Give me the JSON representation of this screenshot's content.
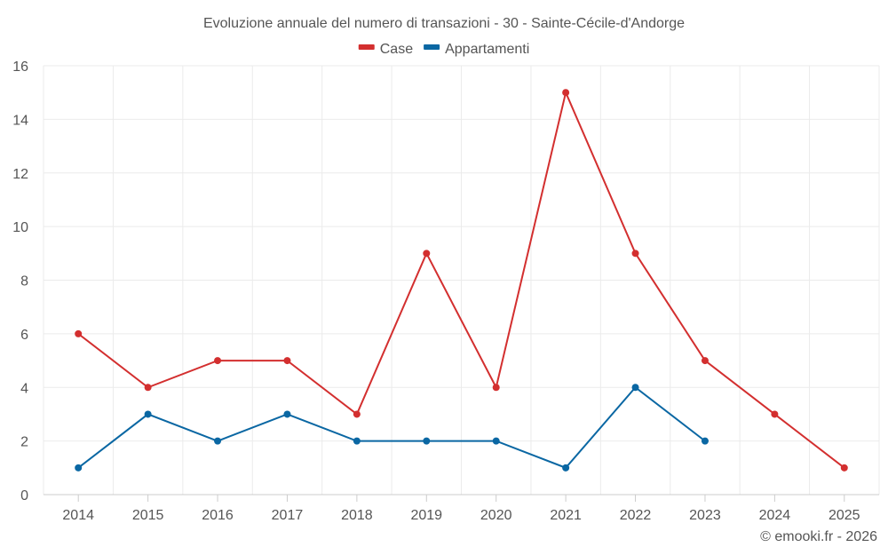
{
  "chart_data": {
    "type": "line",
    "title": "Evoluzione annuale del numero di transazioni - 30 - Sainte-Cécile-d'Andorge",
    "categories": [
      "2014",
      "2015",
      "2016",
      "2017",
      "2018",
      "2019",
      "2020",
      "2021",
      "2022",
      "2023",
      "2024",
      "2025"
    ],
    "series": [
      {
        "name": "Case",
        "color": "#d32f2f",
        "values": [
          6,
          4,
          5,
          5,
          3,
          9,
          4,
          15,
          9,
          5,
          3,
          1
        ]
      },
      {
        "name": "Appartamenti",
        "color": "#0a67a3",
        "values": [
          1,
          3,
          2,
          3,
          2,
          2,
          2,
          1,
          4,
          2,
          null,
          null
        ]
      }
    ],
    "xlabel": "",
    "ylabel": "",
    "ylim": [
      0,
      16
    ],
    "yticks": [
      "0",
      "2",
      "4",
      "6",
      "8",
      "10",
      "12",
      "14",
      "16"
    ],
    "grid": true,
    "legend": "top-center"
  },
  "credit": "© emooki.fr - 2026"
}
